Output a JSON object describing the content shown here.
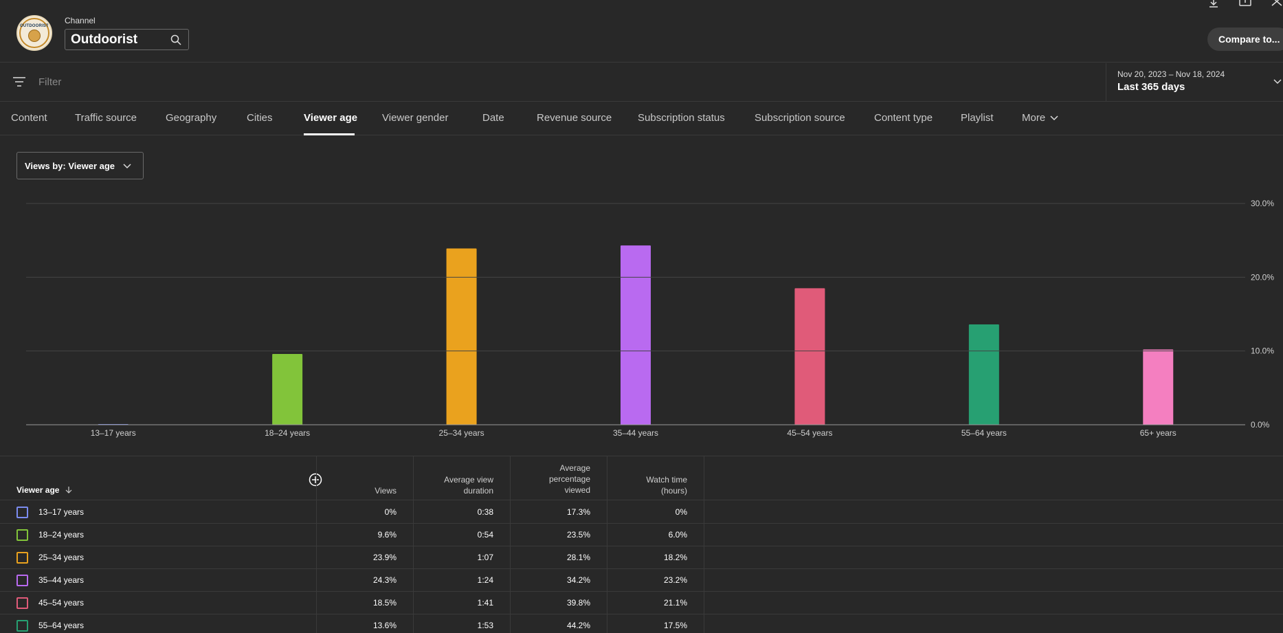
{
  "header": {
    "channel_caption": "Channel",
    "channel_name": "Outdoorist",
    "avatar_text": "OUTDOORIST",
    "compare_label": "Compare to..."
  },
  "filter": {
    "placeholder": "Filter"
  },
  "date_range": {
    "range": "Nov 20, 2023 – Nov 18, 2024",
    "label": "Last 365 days"
  },
  "tabs": [
    {
      "label": "Content"
    },
    {
      "label": "Traffic source"
    },
    {
      "label": "Geography"
    },
    {
      "label": "Cities"
    },
    {
      "label": "Viewer age",
      "active": true
    },
    {
      "label": "Viewer gender"
    },
    {
      "label": "Date"
    },
    {
      "label": "Revenue source"
    },
    {
      "label": "Subscription status"
    },
    {
      "label": "Subscription source"
    },
    {
      "label": "Content type"
    },
    {
      "label": "Playlist"
    },
    {
      "label": "More"
    }
  ],
  "metric_dropdown": {
    "label": "Views by: Viewer age"
  },
  "chart_data": {
    "type": "bar",
    "categories": [
      "13–17 years",
      "18–24 years",
      "25–34 years",
      "35–44 years",
      "45–54 years",
      "55–64 years",
      "65+ years"
    ],
    "values": [
      0,
      9.6,
      23.9,
      24.3,
      18.5,
      13.6,
      10.2
    ],
    "colors": [
      "#7b8cf0",
      "#82c43a",
      "#eaa21e",
      "#b96af0",
      "#e05b79",
      "#27a072",
      "#f47fc0"
    ],
    "yticks": [
      "0.0%",
      "10.0%",
      "20.0%",
      "30.0%"
    ],
    "ylim": [
      0,
      30
    ],
    "grid": true
  },
  "table": {
    "headers": {
      "first": "Viewer age",
      "views": "Views",
      "avg_duration_1": "Average view",
      "avg_duration_2": "duration",
      "avg_pct_1": "Average",
      "avg_pct_2": "percentage",
      "avg_pct_3": "viewed",
      "watch_1": "Watch time",
      "watch_2": "(hours)"
    },
    "rows": [
      {
        "label": "13–17 years",
        "views": "0%",
        "duration": "0:38",
        "pct": "17.3%",
        "watch": "0%",
        "color": "#7b8cf0"
      },
      {
        "label": "18–24 years",
        "views": "9.6%",
        "duration": "0:54",
        "pct": "23.5%",
        "watch": "6.0%",
        "color": "#82c43a"
      },
      {
        "label": "25–34 years",
        "views": "23.9%",
        "duration": "1:07",
        "pct": "28.1%",
        "watch": "18.2%",
        "color": "#eaa21e"
      },
      {
        "label": "35–44 years",
        "views": "24.3%",
        "duration": "1:24",
        "pct": "34.2%",
        "watch": "23.2%",
        "color": "#b96af0"
      },
      {
        "label": "45–54 years",
        "views": "18.5%",
        "duration": "1:41",
        "pct": "39.8%",
        "watch": "21.1%",
        "color": "#e05b79"
      },
      {
        "label": "55–64 years",
        "views": "13.6%",
        "duration": "1:53",
        "pct": "44.2%",
        "watch": "17.5%",
        "color": "#27a072"
      }
    ]
  }
}
